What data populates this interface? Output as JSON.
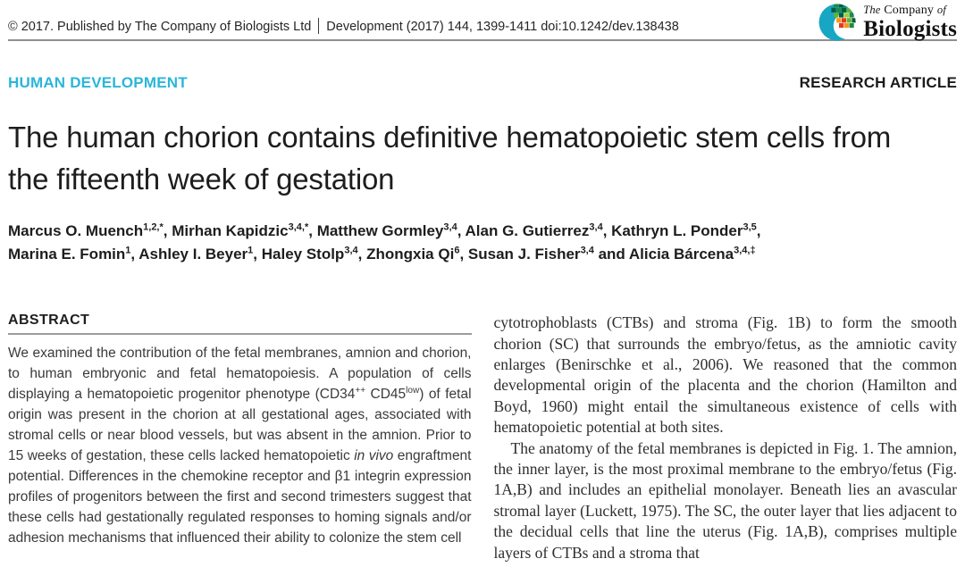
{
  "header": {
    "copyright": "© 2017. Published by The Company of Biologists Ltd",
    "citation": "Development (2017) 144, 1399-1411 doi:10.1242/dev.138438",
    "logo": {
      "the": "The",
      "company": "Company",
      "of": "of",
      "biologists": "Biologists",
      "mark_colors": [
        "#17a6c4",
        "#0a5c38",
        "#1f8a44",
        "#63b32e",
        "#9bcf3a",
        "#f7941d",
        "#e23b1e",
        "#0b8f9e"
      ]
    }
  },
  "kicker": {
    "subject": "HUMAN DEVELOPMENT",
    "article_type": "RESEARCH ARTICLE"
  },
  "colors": {
    "accent_cyan": "#2bb6d9"
  },
  "title": "The human chorion contains definitive hematopoietic stem cells from the fifteenth week of gestation",
  "authors": {
    "line1": [
      {
        "name": "Marcus O. Muench",
        "sup": "1,2,*",
        "sep": ", "
      },
      {
        "name": "Mirhan Kapidzic",
        "sup": "3,4,*",
        "sep": ", "
      },
      {
        "name": "Matthew Gormley",
        "sup": "3,4",
        "sep": ", "
      },
      {
        "name": "Alan G. Gutierrez",
        "sup": "3,4",
        "sep": ", "
      },
      {
        "name": "Kathryn L. Ponder",
        "sup": "3,5",
        "sep": ","
      }
    ],
    "line2": [
      {
        "name": "Marina E. Fomin",
        "sup": "1",
        "sep": ", "
      },
      {
        "name": "Ashley I. Beyer",
        "sup": "1",
        "sep": ", "
      },
      {
        "name": "Haley Stolp",
        "sup": "3,4",
        "sep": ", "
      },
      {
        "name": "Zhongxia Qi",
        "sup": "6",
        "sep": ", "
      },
      {
        "name": "Susan J. Fisher",
        "sup": "3,4",
        "sep": " and "
      },
      {
        "name": "Alicia Bárcena",
        "sup": "3,4,‡",
        "sep": ""
      }
    ]
  },
  "abstract": {
    "heading": "ABSTRACT",
    "segments": [
      {
        "t": "We examined the contribution of the fetal membranes, amnion and chorion, to human embryonic and fetal hematopoiesis. A population of cells displaying a hematopoietic progenitor phenotype (CD34"
      },
      {
        "t": "++",
        "s": "sup"
      },
      {
        "t": " CD45"
      },
      {
        "t": "low",
        "s": "sup"
      },
      {
        "t": ") of fetal origin was present in the chorion at all gestational ages, associated with stromal cells or near blood vessels, but was absent in the amnion. Prior to 15 weeks of gestation, these cells lacked hematopoietic "
      },
      {
        "t": "in vivo",
        "s": "i"
      },
      {
        "t": " engraftment potential. Differences in the chemokine receptor and β1 integrin expression profiles of progenitors between the first and second trimesters suggest that these cells had gestationally regulated responses to homing signals and/or adhesion mechanisms that influenced their ability to colonize the stem cell"
      }
    ]
  },
  "intro": {
    "paragraph1": "cytotrophoblasts (CTBs) and stroma (Fig. 1B) to form the smooth chorion (SC) that surrounds the embryo/fetus, as the amniotic cavity enlarges (Benirschke et al., 2006). We reasoned that the common developmental origin of the placenta and the chorion (Hamilton and Boyd, 1960) might entail the simultaneous existence of cells with hematopoietic potential at both sites.",
    "paragraph2": "The anatomy of the fetal membranes is depicted in Fig. 1. The amnion, the inner layer, is the most proximal membrane to the embryo/fetus (Fig. 1A,B) and includes an epithelial monolayer. Beneath lies an avascular stromal layer (Luckett, 1975). The SC, the outer layer that lies adjacent to the decidual cells that line the uterus (Fig. 1A,B), comprises multiple layers of CTBs and a stroma that"
  }
}
